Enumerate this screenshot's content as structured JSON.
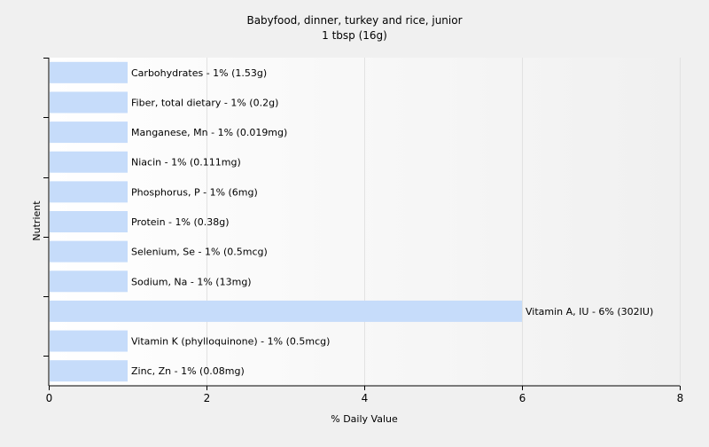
{
  "chart_data": {
    "type": "bar",
    "orientation": "horizontal",
    "title": "Babyfood, dinner, turkey and rice, junior",
    "subtitle": "1 tbsp (16g)",
    "xlabel": "% Daily Value",
    "ylabel": "Nutrient",
    "xlim": [
      0,
      8
    ],
    "xticks": [
      0,
      2,
      4,
      6,
      8
    ],
    "grid": true,
    "bar_color": "#c6dcfa",
    "categories": [
      "Carbohydrates",
      "Fiber, total dietary",
      "Manganese, Mn",
      "Niacin",
      "Phosphorus, P",
      "Protein",
      "Selenium, Se",
      "Sodium, Na",
      "Vitamin A, IU",
      "Vitamin K (phylloquinone)",
      "Zinc, Zn"
    ],
    "values": [
      1,
      1,
      1,
      1,
      1,
      1,
      1,
      1,
      6,
      1,
      1
    ],
    "labels": [
      "Carbohydrates - 1% (1.53g)",
      "Fiber, total dietary - 1% (0.2g)",
      "Manganese, Mn - 1% (0.019mg)",
      "Niacin - 1% (0.111mg)",
      "Phosphorus, P - 1% (6mg)",
      "Protein - 1% (0.38g)",
      "Selenium, Se - 1% (0.5mcg)",
      "Sodium, Na - 1% (13mg)",
      "Vitamin A, IU - 6% (302IU)",
      "Vitamin K (phylloquinone) - 1% (0.5mcg)",
      "Zinc, Zn - 1% (0.08mg)"
    ]
  }
}
